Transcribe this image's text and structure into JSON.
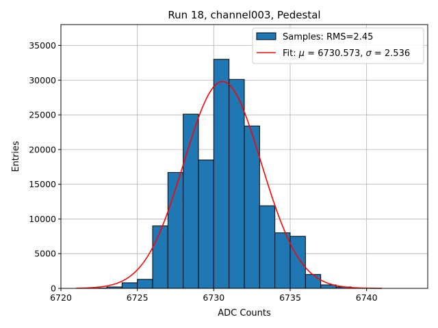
{
  "chart_data": {
    "type": "bar",
    "title": "Run 18, channel003, Pedestal",
    "xlabel": "ADC Counts",
    "ylabel": "Entries",
    "xlim": [
      6720,
      6744
    ],
    "ylim": [
      0,
      38000
    ],
    "grid": true,
    "legend_placement": "top-right",
    "x_ticks": [
      6720,
      6725,
      6730,
      6735,
      6740
    ],
    "y_ticks": [
      0,
      5000,
      10000,
      15000,
      20000,
      25000,
      30000,
      35000
    ],
    "histogram": {
      "name": "Samples: RMS=2.45",
      "color": "#1f77b4",
      "bin_width": 1,
      "bin_left_edges": [
        6721,
        6722,
        6723,
        6724,
        6725,
        6726,
        6727,
        6728,
        6729,
        6730,
        6731,
        6732,
        6733,
        6734,
        6735,
        6736,
        6737,
        6738,
        6739,
        6740
      ],
      "counts": [
        0,
        50,
        200,
        800,
        1300,
        9000,
        16700,
        25100,
        18500,
        33000,
        30100,
        23400,
        11900,
        8000,
        7500,
        2000,
        500,
        200,
        50,
        0
      ]
    },
    "fit": {
      "label_prefix": "Fit: ",
      "mu_symbol": "μ",
      "mu_text": " = 6730.573, ",
      "sigma_symbol": "σ",
      "sigma_text": " = 2.536",
      "mu": 6730.573,
      "sigma": 2.536,
      "amplitude": 29800,
      "x_range": [
        6721,
        6741
      ],
      "color": "#ff0000"
    }
  }
}
